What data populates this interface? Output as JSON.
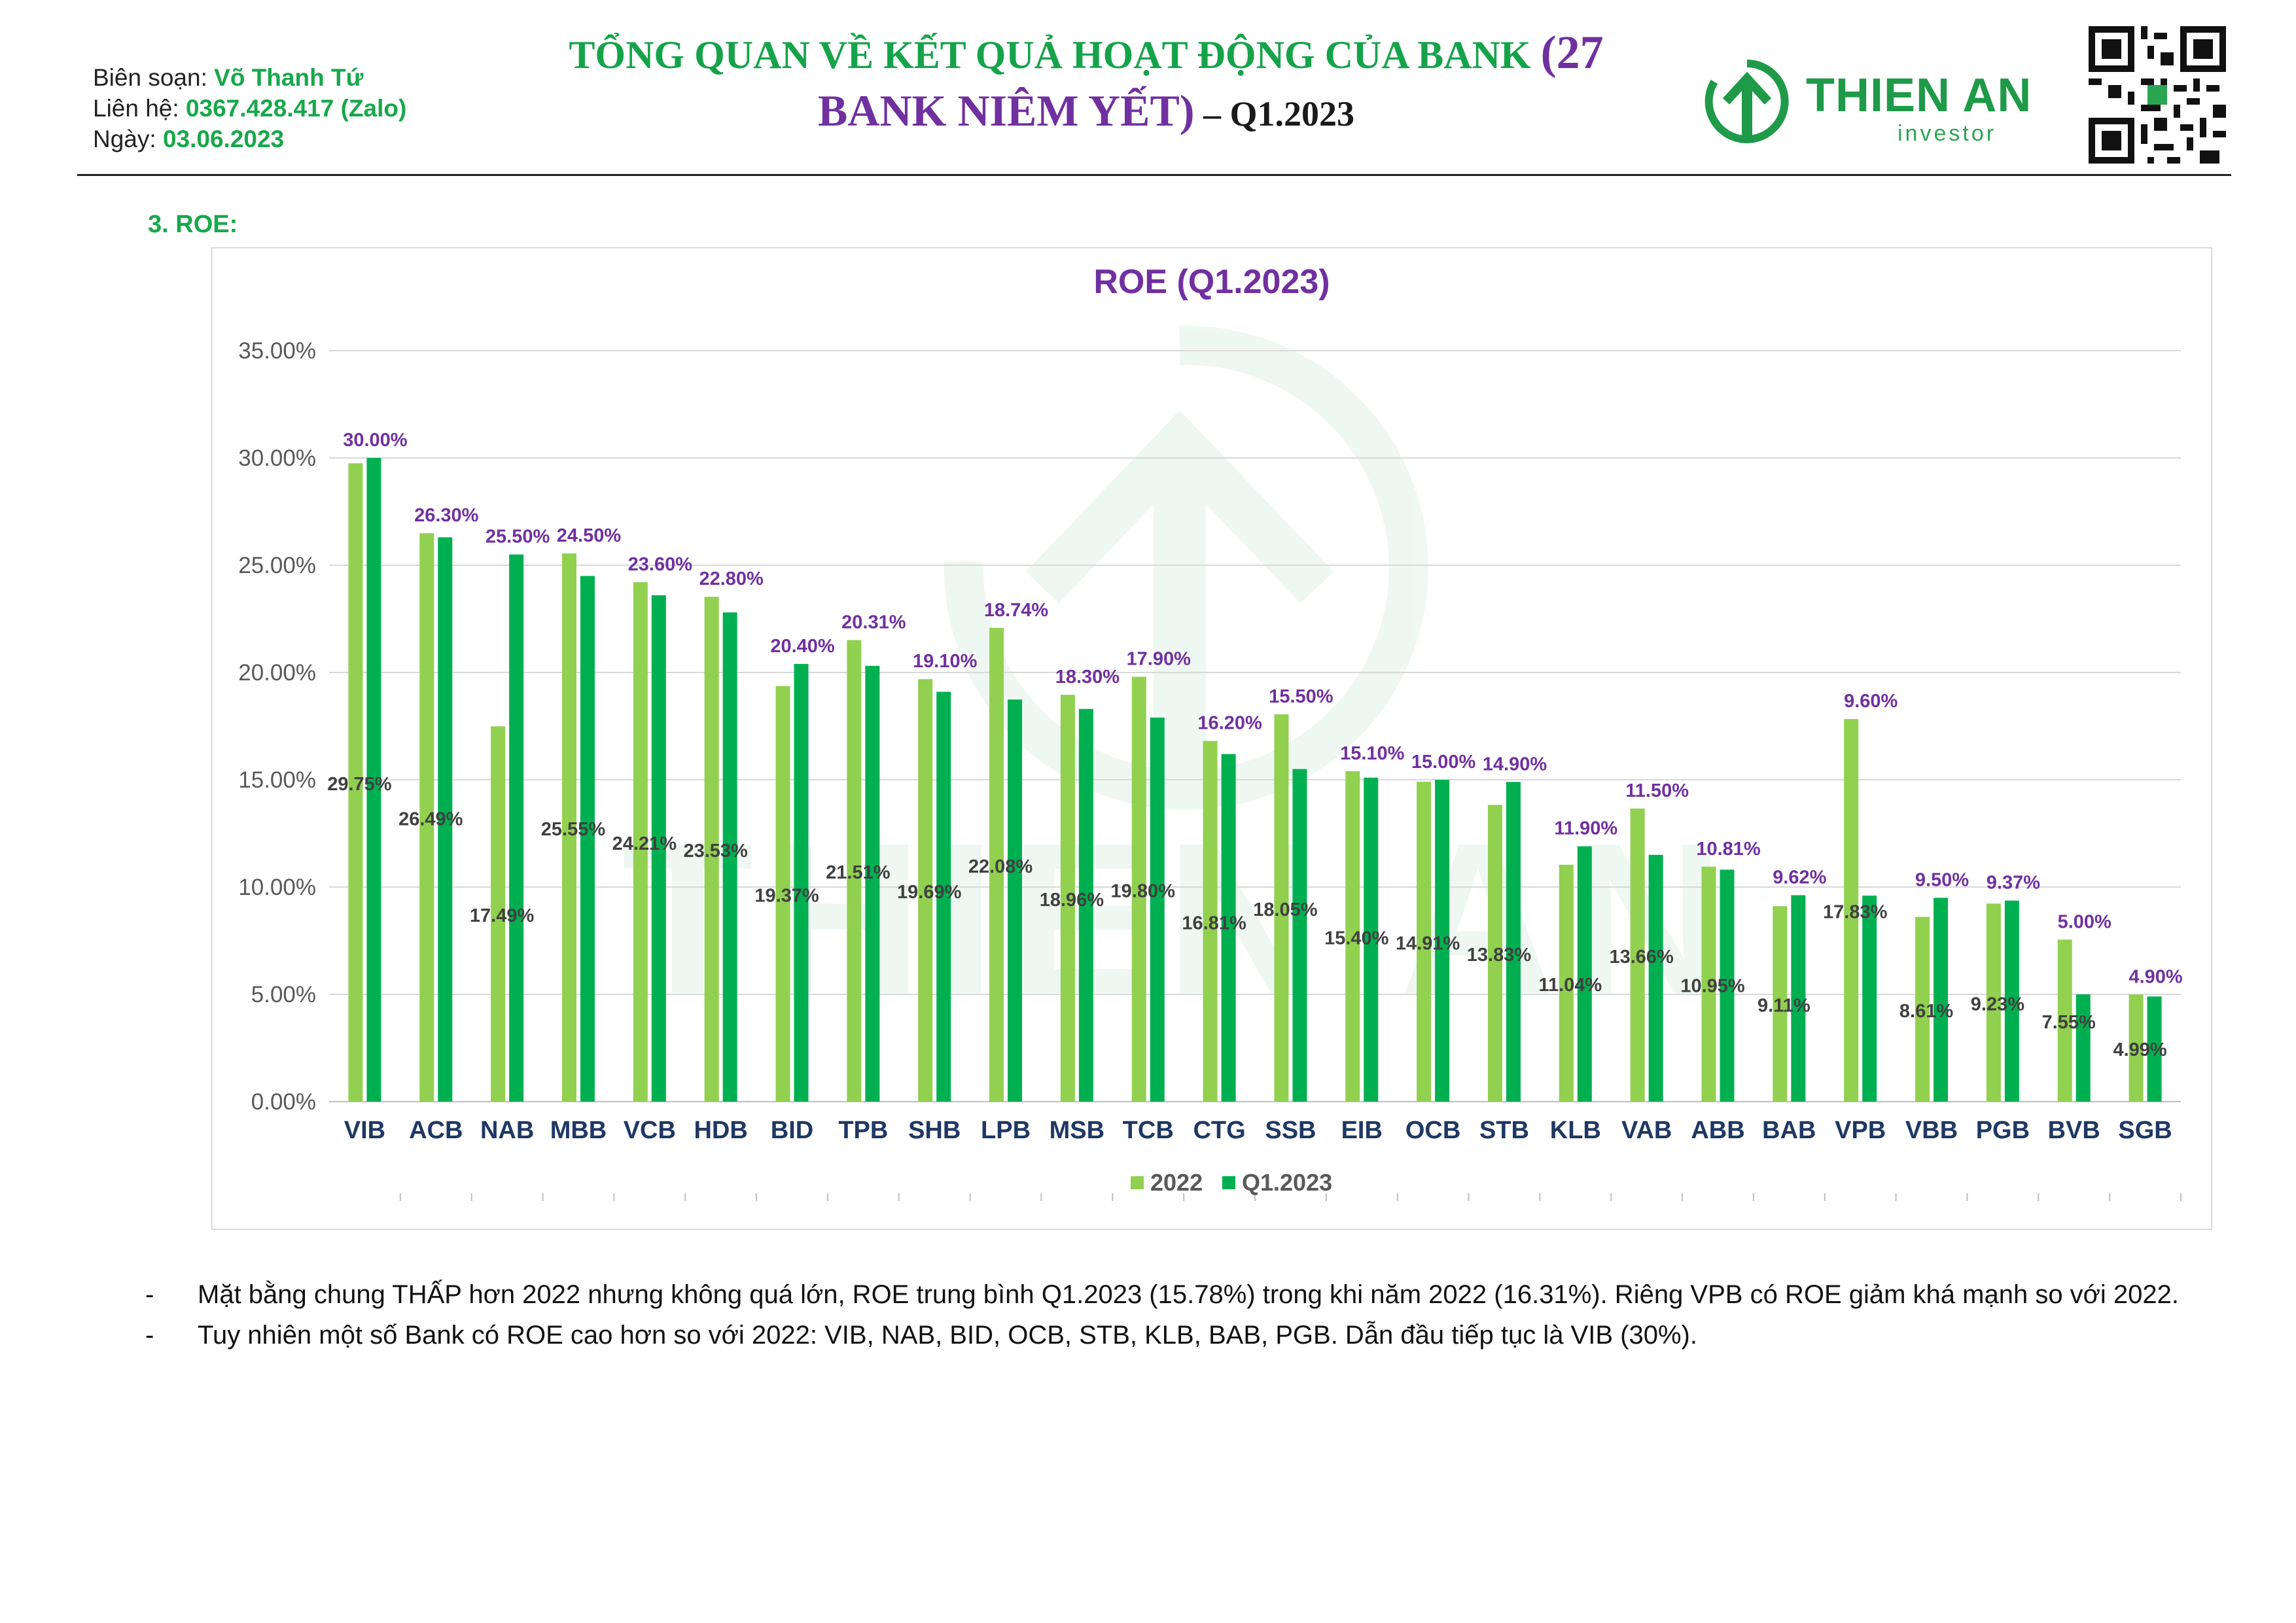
{
  "header": {
    "author_label": "Biên soạn: ",
    "author": "Võ Thanh Tứ",
    "contact_label": "Liên hệ: ",
    "contact": "0367.428.417 (Zalo)",
    "date_label": "Ngày: ",
    "date": "03.06.2023",
    "title_line1": "TỔNG QUAN VỀ KẾT QUẢ HOẠT ĐỘNG CỦA BANK ",
    "title_paren": "(27",
    "title_line2": "BANK NIÊM YẾT)",
    "title_quarter": " – Q1.2023"
  },
  "logo": {
    "name": "THIEN AN",
    "sub": "investor"
  },
  "section": {
    "label": "3.   ROE:"
  },
  "chart_data": {
    "type": "bar",
    "title": "ROE (Q1.2023)",
    "categories": [
      "VIB",
      "ACB",
      "NAB",
      "MBB",
      "VCB",
      "HDB",
      "BID",
      "TPB",
      "SHB",
      "LPB",
      "MSB",
      "TCB",
      "CTG",
      "SSB",
      "EIB",
      "OCB",
      "STB",
      "KLB",
      "VAB",
      "ABB",
      "BAB",
      "VPB",
      "VBB",
      "PGB",
      "BVB",
      "SGB"
    ],
    "series": [
      {
        "name": "2022",
        "color": "#92d050",
        "values": [
          29.75,
          26.49,
          17.49,
          25.55,
          24.21,
          23.53,
          19.37,
          21.51,
          19.69,
          22.08,
          18.96,
          19.8,
          16.81,
          18.05,
          15.4,
          14.91,
          13.83,
          11.04,
          13.66,
          10.95,
          9.11,
          17.83,
          8.61,
          9.23,
          7.55,
          4.99
        ],
        "labels": [
          "29.75%",
          "26.49%",
          "17.49%",
          "25.55%",
          "24.21%",
          "23.53%",
          "19.37%",
          "21.51%",
          "19.69%",
          "22.08%",
          "18.96%",
          "19.80%",
          "16.81%",
          "18.05%",
          "15.40%",
          "14.91%",
          "13.83%",
          "11.04%",
          "13.66%",
          "10.95%",
          "9.11%",
          "17.83%",
          "8.61%",
          "9.23%",
          "7.55%",
          "4.99%"
        ]
      },
      {
        "name": "Q1.2023",
        "color": "#00b050",
        "values": [
          30.0,
          26.3,
          25.5,
          24.5,
          23.6,
          22.8,
          20.4,
          20.31,
          19.1,
          18.74,
          18.3,
          17.9,
          16.2,
          15.5,
          15.1,
          15.0,
          14.9,
          11.9,
          11.5,
          10.81,
          9.62,
          9.6,
          9.5,
          9.37,
          5.0,
          4.9
        ],
        "labels": [
          "30.00%",
          "26.30%",
          "25.50%",
          "24.50%",
          "23.60%",
          "22.80%",
          "20.40%",
          "20.31%",
          "19.10%",
          "18.74%",
          "18.30%",
          "17.90%",
          "16.20%",
          "15.50%",
          "15.10%",
          "15.00%",
          "14.90%",
          "11.90%",
          "11.50%",
          "10.81%",
          "9.62%",
          "9.60%",
          "9.50%",
          "9.37%",
          "5.00%",
          "4.90%"
        ]
      }
    ],
    "y_ticks": [
      "0.00%",
      "5.00%",
      "10.00%",
      "15.00%",
      "20.00%",
      "25.00%",
      "30.00%",
      "35.00%"
    ],
    "ylim": [
      0,
      35
    ],
    "grid": true,
    "legend": "bottom"
  },
  "notes": [
    "Mặt bằng chung THẤP hơn 2022 nhưng không quá lớn, ROE trung bình Q1.2023 (15.78%) trong khi năm 2022 (16.31%). Riêng VPB có ROE giảm khá mạnh so với 2022.",
    "Tuy nhiên một số Bank có ROE cao hơn so với 2022: VIB, NAB, BID, OCB, STB, KLB, BAB, PGB. Dẫn đầu tiếp tục là VIB (30%)."
  ],
  "note_dash": "-"
}
